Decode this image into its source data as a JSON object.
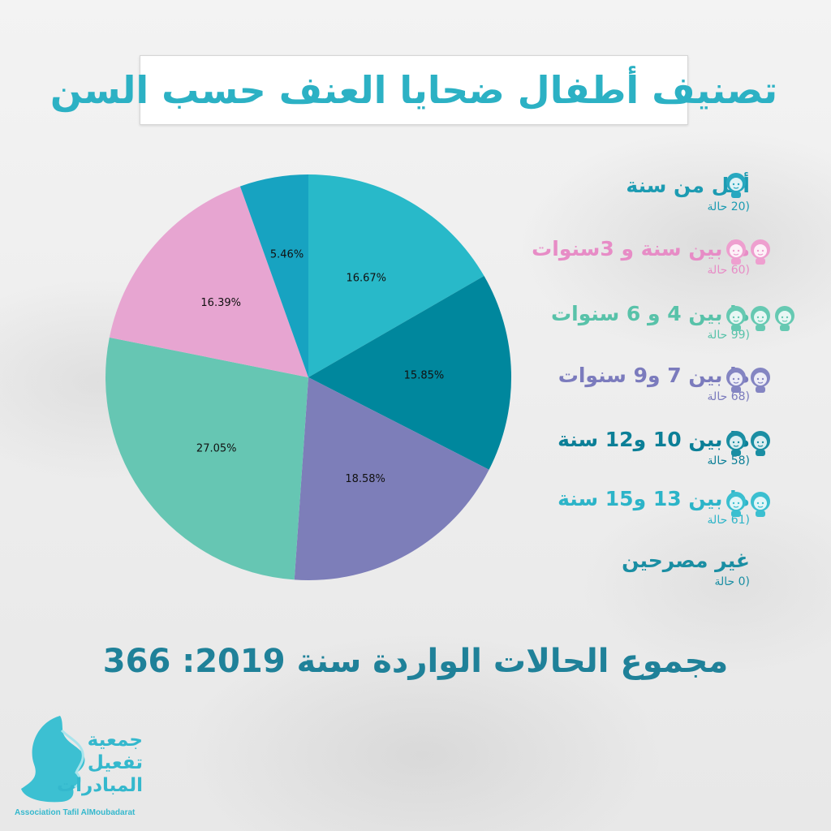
{
  "title": "تصنيف أطفال ضحايا العنف حسب السن",
  "total_text": "مجموع الحالات الواردة سنة 2019: 366",
  "logo": {
    "line1": "جمعية",
    "line2": "تفعيل",
    "line3": "المبادرات",
    "subtitle": "Association Tafil AlMoubadarat"
  },
  "chart_data": {
    "type": "pie",
    "title": "تصنيف أطفال ضحايا العنف حسب السن",
    "start_angle_deg": 0,
    "direction": "clockwise",
    "slices": [
      {
        "percent_label": "16.67%",
        "value": 16.67,
        "color": "#28b9c9"
      },
      {
        "percent_label": "15.85%",
        "value": 15.85,
        "color": "#00879d"
      },
      {
        "percent_label": "18.58%",
        "value": 18.58,
        "color": "#7d7eb9"
      },
      {
        "percent_label": "27.05%",
        "value": 27.05,
        "color": "#66c6b3"
      },
      {
        "percent_label": "16.39%",
        "value": 16.39,
        "color": "#e7a5d1"
      },
      {
        "percent_label": "5.46%",
        "value": 5.46,
        "color": "#17a3c1"
      }
    ],
    "legend": [
      {
        "label": "أقل من سنة",
        "count": "(20 حالة",
        "color": "#1c9bb2",
        "count_color": "#1c9bb2",
        "icon_count": 1,
        "icon_color": "#28a8c0"
      },
      {
        "label": "ما بين سنة و 3سنوات",
        "count": "(60 حالة",
        "color": "#e78cc6",
        "count_color": "#e78cc6",
        "icon_count": 2,
        "icon_color": "#ee9fcf"
      },
      {
        "label": "ما بين 4 و 6 سنوات",
        "count": "(99 حالة",
        "color": "#58c2a9",
        "count_color": "#58c2a9",
        "icon_count": 3,
        "icon_color": "#66c9b2"
      },
      {
        "label": "ما بين 7 و9 سنوات",
        "count": "(68 حالة",
        "color": "#7b7bbd",
        "count_color": "#7b7bbd",
        "icon_count": 2,
        "icon_color": "#8485c2"
      },
      {
        "label": "ما بين 10 و12 سنة",
        "count": "(58 حالة",
        "color": "#0b7f97",
        "count_color": "#0b7f97",
        "icon_count": 2,
        "icon_color": "#1a8ea3"
      },
      {
        "label": "ما بين 13 و15 سنة",
        "count": "(61 حالة",
        "color": "#2cb4c8",
        "count_color": "#2cb4c8",
        "icon_count": 2,
        "icon_color": "#3bbfd0"
      },
      {
        "label": "غير مصرحين",
        "count": "(0 حالة",
        "color": "#1a8ea3",
        "count_color": "#1a8ea3",
        "icon_count": 0,
        "icon_color": "#1a8ea3"
      }
    ]
  }
}
